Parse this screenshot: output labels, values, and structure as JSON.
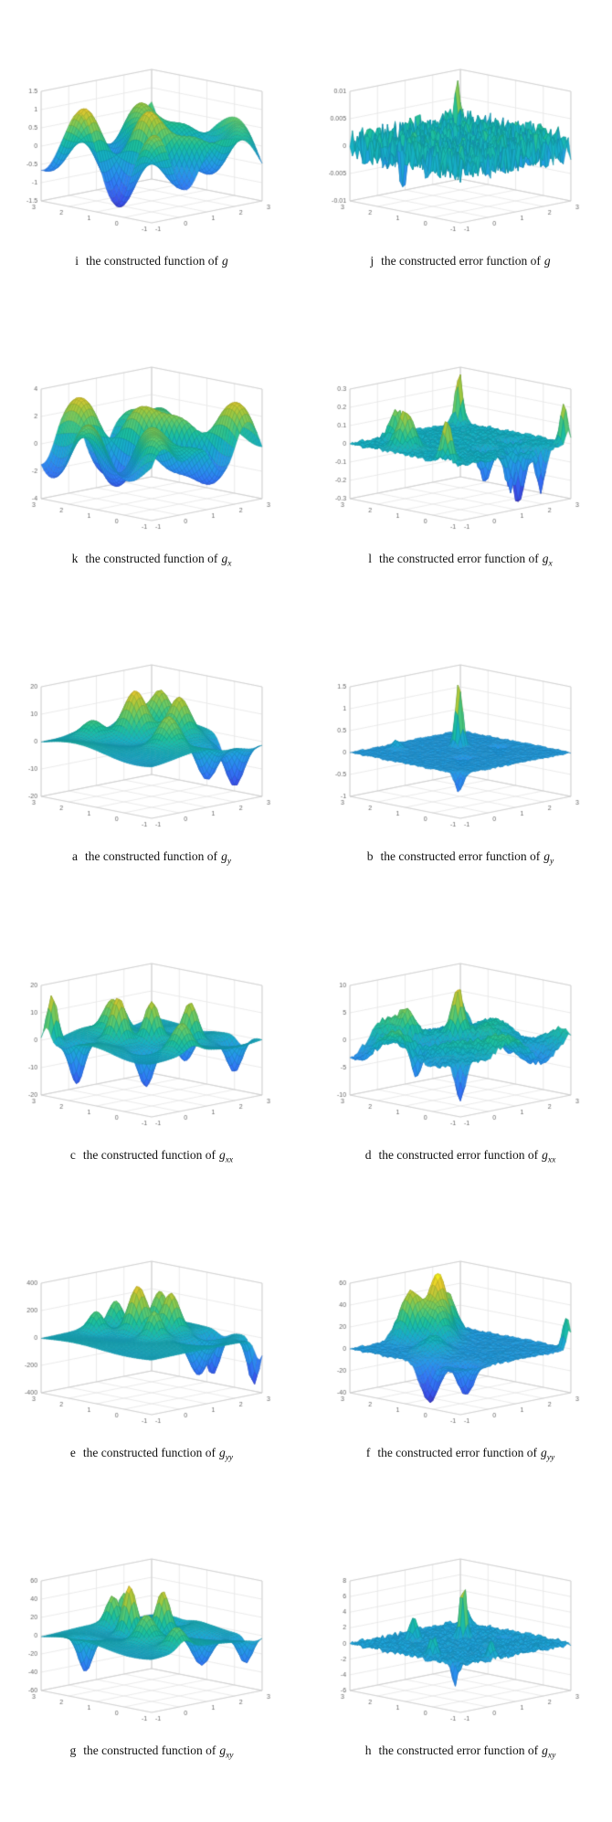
{
  "page": {
    "background": "#ffffff",
    "caption_color": "#111111"
  },
  "chart_data": {
    "type": "surface",
    "layout": "grid-6x2",
    "colormap": "parula",
    "colormap_hex": [
      "#3e26a8",
      "#3a52eb",
      "#317af6",
      "#2698ea",
      "#16b0c4",
      "#1dc09c",
      "#5eca6e",
      "#a2c83e",
      "#e4c830",
      "#f9f915"
    ],
    "xlim": [
      -1,
      3
    ],
    "ylim": [
      -1,
      3
    ],
    "x_ticks": [
      -1,
      0,
      1,
      2,
      3
    ],
    "y_ticks": [
      -1,
      0,
      1,
      2,
      3
    ],
    "grid": true,
    "figures": [
      {
        "letter": "i",
        "caption": "the constructed function of",
        "func": "g",
        "sub": "",
        "zlim": [
          -1.5,
          1.5
        ],
        "z_ticks": [
          1.5,
          1,
          0.5,
          0,
          -0.5,
          -1,
          -1.5
        ],
        "surface": {
          "base": {
            "amp": 0.85,
            "fx": 2.3,
            "px": 0.6,
            "fy": 2.0,
            "py": -0.4,
            "amp2": 0.5,
            "fx2": 3.6,
            "fy2": 3.0
          }
        }
      },
      {
        "letter": "j",
        "caption": "the constructed error function of",
        "func": "g",
        "sub": "",
        "zlim": [
          -0.01,
          0.01
        ],
        "z_ticks": [
          0.01,
          0.005,
          0,
          -0.005,
          -0.01
        ],
        "surface": {
          "noise": 0.0032,
          "peaks": [
            {
              "x": 2.7,
              "y": 2.8,
              "a": 0.009,
              "s": 0.07
            },
            {
              "x": -0.9,
              "y": 1.2,
              "a": -0.006,
              "s": 0.06
            },
            {
              "x": 1.5,
              "y": -0.8,
              "a": 0.005,
              "s": 0.06
            }
          ]
        }
      },
      {
        "letter": "k",
        "caption": "the constructed function of",
        "func": "g",
        "sub": "x",
        "zlim": [
          -4,
          4
        ],
        "z_ticks": [
          4,
          2,
          0,
          -2,
          -4
        ],
        "surface": {
          "base": {
            "amp": 2.6,
            "fx": 2.5,
            "px": 1.7,
            "fy": 2.1,
            "py": 0.9,
            "amp2": 1.5,
            "fx2": 3.9,
            "fy2": 2.8
          },
          "clip": 4.2
        }
      },
      {
        "letter": "l",
        "caption": "the constructed error function of",
        "func": "g",
        "sub": "x",
        "zlim": [
          -0.3,
          0.3
        ],
        "z_ticks": [
          0.3,
          0.2,
          0.1,
          0,
          -0.1,
          -0.2,
          -0.3
        ],
        "surface": {
          "noise": 0.012,
          "peaks": [
            {
              "x": -0.4,
              "y": 1.6,
              "a": 0.2,
              "s": 0.22
            },
            {
              "x": 0.3,
              "y": 2.6,
              "a": 0.16,
              "s": 0.18
            },
            {
              "x": -0.9,
              "y": -0.4,
              "a": 0.22,
              "s": 0.14
            },
            {
              "x": 2.8,
              "y": 2.85,
              "a": 0.28,
              "s": 0.1
            },
            {
              "x": 1.6,
              "y": -0.5,
              "a": -0.3,
              "s": 0.16
            },
            {
              "x": 2.2,
              "y": 0.4,
              "a": -0.26,
              "s": 0.14
            },
            {
              "x": 1.05,
              "y": 0.15,
              "a": -0.18,
              "s": 0.16
            },
            {
              "x": 2.9,
              "y": -0.85,
              "a": 0.22,
              "s": 0.1
            },
            {
              "x": 0.9,
              "y": -0.9,
              "a": -0.2,
              "s": 0.12
            },
            {
              "x": 2.0,
              "y": -0.9,
              "a": -0.24,
              "s": 0.12
            }
          ]
        }
      },
      {
        "letter": "a",
        "caption": "the constructed function of",
        "func": "g",
        "sub": "y",
        "zlim": [
          -20,
          20
        ],
        "z_ticks": [
          20,
          10,
          0,
          -10,
          -20
        ],
        "surface": {
          "base": {
            "amp": 1.8,
            "fx": 1.6,
            "px": 0.2,
            "fy": 1.4,
            "py": 0.6
          },
          "peaks": [
            {
              "x": 1.2,
              "y": 1.8,
              "a": 18,
              "s": 0.32
            },
            {
              "x": 2.0,
              "y": 1.0,
              "a": 14,
              "s": 0.28
            },
            {
              "x": 0.8,
              "y": 0.2,
              "a": 10,
              "s": 0.28
            },
            {
              "x": 1.6,
              "y": -0.4,
              "a": -13,
              "s": 0.26
            },
            {
              "x": 2.5,
              "y": 2.2,
              "a": 12,
              "s": 0.26
            },
            {
              "x": 2.6,
              "y": -0.4,
              "a": -15,
              "s": 0.24
            },
            {
              "x": 0.3,
              "y": 2.4,
              "a": 7,
              "s": 0.3
            },
            {
              "x": 1.9,
              "y": 2.6,
              "a": 10,
              "s": 0.24
            },
            {
              "x": 2.9,
              "y": 0.3,
              "a": -9,
              "s": 0.2
            }
          ]
        }
      },
      {
        "letter": "b",
        "caption": "the constructed error function of",
        "func": "g",
        "sub": "y",
        "zlim": [
          -1,
          1.5
        ],
        "z_ticks": [
          1.5,
          1,
          0.5,
          0,
          -0.5,
          -1
        ],
        "surface": {
          "noise": 0.02,
          "peaks": [
            {
              "x": 1.55,
              "y": 1.6,
              "a": 1.5,
              "s": 0.09
            },
            {
              "x": 0.6,
              "y": 0.5,
              "a": -0.2,
              "s": 0.14
            },
            {
              "x": 2.3,
              "y": 0.9,
              "a": -0.25,
              "s": 0.12
            },
            {
              "x": -0.9,
              "y": -0.85,
              "a": -0.45,
              "s": 0.1
            },
            {
              "x": 0.2,
              "y": 2.5,
              "a": 0.2,
              "s": 0.12
            }
          ]
        }
      },
      {
        "letter": "c",
        "caption": "the constructed function of",
        "func": "g",
        "sub": "xx",
        "zlim": [
          -20,
          20
        ],
        "z_ticks": [
          20,
          10,
          0,
          -10,
          -20
        ],
        "surface": {
          "base": {
            "amp": 1.5,
            "fx": 2.1,
            "px": 0.3,
            "fy": 1.9,
            "py": 0.8
          },
          "peaks": [
            {
              "x": 0.3,
              "y": 1.5,
              "a": 17,
              "s": 0.22
            },
            {
              "x": 1.0,
              "y": 1.0,
              "a": 15,
              "s": 0.2
            },
            {
              "x": 0.9,
              "y": 2.3,
              "a": 12,
              "s": 0.24
            },
            {
              "x": 1.7,
              "y": 0.3,
              "a": 14,
              "s": 0.2
            },
            {
              "x": 0.1,
              "y": 0.3,
              "a": -14,
              "s": 0.2
            },
            {
              "x": 1.5,
              "y": 2.7,
              "a": 10,
              "s": 0.2
            },
            {
              "x": 2.4,
              "y": 1.2,
              "a": -12,
              "s": 0.24
            },
            {
              "x": -0.6,
              "y": 2.1,
              "a": -15,
              "s": 0.18
            },
            {
              "x": 2.7,
              "y": -0.3,
              "a": -12,
              "s": 0.2
            },
            {
              "x": 0.5,
              "y": -0.6,
              "a": 9,
              "s": 0.24
            },
            {
              "x": -0.8,
              "y": 2.8,
              "a": 18,
              "s": 0.14
            }
          ]
        }
      },
      {
        "letter": "d",
        "caption": "the constructed error function of",
        "func": "g",
        "sub": "xx",
        "zlim": [
          -10,
          10
        ],
        "z_ticks": [
          10,
          5,
          0,
          -5,
          -10
        ],
        "surface": {
          "base": {
            "amp": 2.2,
            "fx": 2.0,
            "px": 0.5,
            "fy": 1.8,
            "py": 1.0,
            "amp2": 1.3,
            "fx2": 3.2,
            "fy2": 2.7
          },
          "noise": 0.5,
          "peaks": [
            {
              "x": 1.4,
              "y": 1.5,
              "a": 8,
              "s": 0.14
            },
            {
              "x": 0.4,
              "y": 2.3,
              "a": 4,
              "s": 0.2
            },
            {
              "x": 2.3,
              "y": 0.6,
              "a": -5,
              "s": 0.2
            },
            {
              "x": -0.7,
              "y": 0.9,
              "a": -6,
              "s": 0.15
            },
            {
              "x": 2.8,
              "y": 2.8,
              "a": 5,
              "s": 0.14
            },
            {
              "x": -0.9,
              "y": -0.9,
              "a": -7,
              "s": 0.12
            }
          ]
        }
      },
      {
        "letter": "e",
        "caption": "the constructed function of",
        "func": "g",
        "sub": "yy",
        "zlim": [
          -400,
          400
        ],
        "z_ticks": [
          400,
          200,
          0,
          -200,
          -400
        ],
        "surface": {
          "base": {
            "amp": 12,
            "fx": 1.8,
            "px": 0.4,
            "fy": 1.6,
            "py": 0.2
          },
          "peaks": [
            {
              "x": 1.3,
              "y": 1.8,
              "a": 340,
              "s": 0.24
            },
            {
              "x": 1.9,
              "y": 1.2,
              "a": 280,
              "s": 0.22
            },
            {
              "x": 1.0,
              "y": 0.9,
              "a": 200,
              "s": 0.2
            },
            {
              "x": 2.3,
              "y": 2.0,
              "a": 240,
              "s": 0.2
            },
            {
              "x": 1.6,
              "y": -0.1,
              "a": -250,
              "s": 0.24
            },
            {
              "x": 2.6,
              "y": 0.4,
              "a": -300,
              "s": 0.2
            },
            {
              "x": 0.6,
              "y": 2.6,
              "a": 150,
              "s": 0.2
            },
            {
              "x": 2.9,
              "y": -0.8,
              "a": -340,
              "s": 0.16
            },
            {
              "x": 1.5,
              "y": 2.8,
              "a": 180,
              "s": 0.18
            }
          ]
        }
      },
      {
        "letter": "f",
        "caption": "the constructed error function of",
        "func": "g",
        "sub": "yy",
        "zlim": [
          -40,
          60
        ],
        "z_ticks": [
          60,
          40,
          20,
          0,
          -20,
          -40
        ],
        "surface": {
          "noise": 1.2,
          "peaks": [
            {
              "x": 0.8,
              "y": 2.6,
              "a": 45,
              "s": 0.28
            },
            {
              "x": 1.5,
              "y": 2.3,
              "a": 55,
              "s": 0.24
            },
            {
              "x": 2.1,
              "y": 2.6,
              "a": 38,
              "s": 0.24
            },
            {
              "x": 1.1,
              "y": 1.9,
              "a": 28,
              "s": 0.28
            },
            {
              "x": -0.8,
              "y": 0.3,
              "a": -36,
              "s": 0.24
            },
            {
              "x": -0.3,
              "y": -0.5,
              "a": -28,
              "s": 0.2
            },
            {
              "x": 2.95,
              "y": -0.9,
              "a": 30,
              "s": 0.1
            },
            {
              "x": 0.2,
              "y": 1.2,
              "a": 15,
              "s": 0.3
            }
          ]
        }
      },
      {
        "letter": "g",
        "caption": "the constructed function of",
        "func": "g",
        "sub": "xy",
        "zlim": [
          -60,
          60
        ],
        "z_ticks": [
          60,
          40,
          20,
          0,
          -20,
          -40,
          -60
        ],
        "surface": {
          "base": {
            "amp": 4,
            "fx": 1.7,
            "px": 0.3,
            "fy": 1.5,
            "py": 0.5
          },
          "peaks": [
            {
              "x": 0.9,
              "y": 1.7,
              "a": 55,
              "s": 0.18
            },
            {
              "x": 1.5,
              "y": 1.1,
              "a": 46,
              "s": 0.18
            },
            {
              "x": 0.4,
              "y": 0.6,
              "a": 28,
              "s": 0.24
            },
            {
              "x": 1.2,
              "y": 2.6,
              "a": 34,
              "s": 0.18
            },
            {
              "x": 2.0,
              "y": 0.2,
              "a": -32,
              "s": 0.24
            },
            {
              "x": 2.5,
              "y": 1.8,
              "a": -24,
              "s": 0.24
            },
            {
              "x": -0.5,
              "y": 1.9,
              "a": -38,
              "s": 0.18
            },
            {
              "x": 2.8,
              "y": -0.6,
              "a": -28,
              "s": 0.18
            },
            {
              "x": 0.2,
              "y": -0.7,
              "a": 22,
              "s": 0.24
            },
            {
              "x": 1.9,
              "y": 2.9,
              "a": 30,
              "s": 0.16
            }
          ]
        }
      },
      {
        "letter": "h",
        "caption": "the constructed error function of",
        "func": "g",
        "sub": "xy",
        "zlim": [
          -6,
          8
        ],
        "z_ticks": [
          8,
          6,
          4,
          2,
          0,
          -2,
          -4,
          -6
        ],
        "surface": {
          "noise": 0.35,
          "peaks": [
            {
              "x": 1.6,
              "y": 1.5,
              "a": 7.5,
              "s": 0.08
            },
            {
              "x": 0.5,
              "y": 2.2,
              "a": 3,
              "s": 0.1
            },
            {
              "x": -0.6,
              "y": 0.4,
              "a": 2.5,
              "s": 0.1
            },
            {
              "x": 2.4,
              "y": 0.8,
              "a": -2.2,
              "s": 0.1
            },
            {
              "x": -0.9,
              "y": -0.7,
              "a": -2.8,
              "s": 0.08
            },
            {
              "x": 2.8,
              "y": 2.6,
              "a": 2.2,
              "s": 0.1
            },
            {
              "x": 0.3,
              "y": -0.8,
              "a": 2,
              "s": 0.09
            }
          ]
        }
      }
    ]
  }
}
